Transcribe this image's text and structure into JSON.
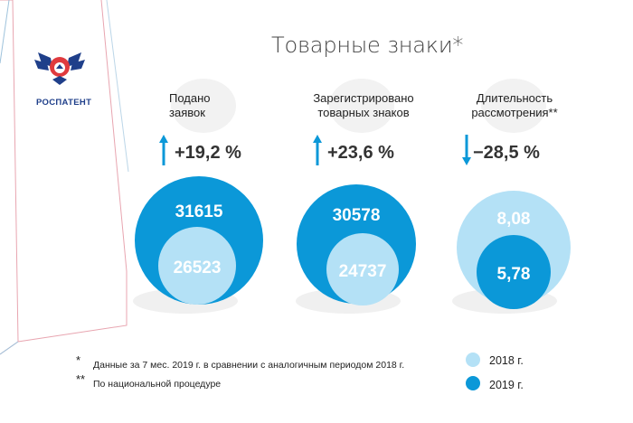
{
  "title": "Товарные знаки*",
  "logo": {
    "text": "РОСПАТЕНТ"
  },
  "colors": {
    "y2018": "#b4e1f6",
    "y2019": "#0b98d8",
    "shadow": "#f0f0f0",
    "text": "#333333"
  },
  "chart_data": {
    "type": "bubble-comparison",
    "series": [
      {
        "name": "2018 г.",
        "values": [
          26523,
          24737,
          8.08
        ]
      },
      {
        "name": "2019 г.",
        "values": [
          31615,
          30578,
          5.78
        ]
      }
    ],
    "categories": [
      {
        "label_line1": "Подано",
        "label_line2": "заявок",
        "change": "+19,2 %",
        "direction": "up",
        "value_2018": "26523",
        "value_2019": "31615"
      },
      {
        "label_line1": "Зарегистрировано",
        "label_line2": "товарных знаков",
        "change": "+23,6 %",
        "direction": "up",
        "value_2018": "24737",
        "value_2019": "30578"
      },
      {
        "label_line1": "Длительность",
        "label_line2": "рассмотрения**",
        "change": "−28,5 %",
        "direction": "down",
        "value_2018": "8,08",
        "value_2019": "5,78"
      }
    ]
  },
  "footnotes": [
    {
      "mark": "*",
      "text": "Данные за 7 мес. 2019 г. в сравнении с аналогичным периодом 2018 г."
    },
    {
      "mark": "**",
      "text": "По национальной процедуре"
    }
  ],
  "legend": [
    {
      "label": "2018 г.",
      "color": "#b4e1f6"
    },
    {
      "label": "2019 г.",
      "color": "#0b98d8"
    }
  ]
}
